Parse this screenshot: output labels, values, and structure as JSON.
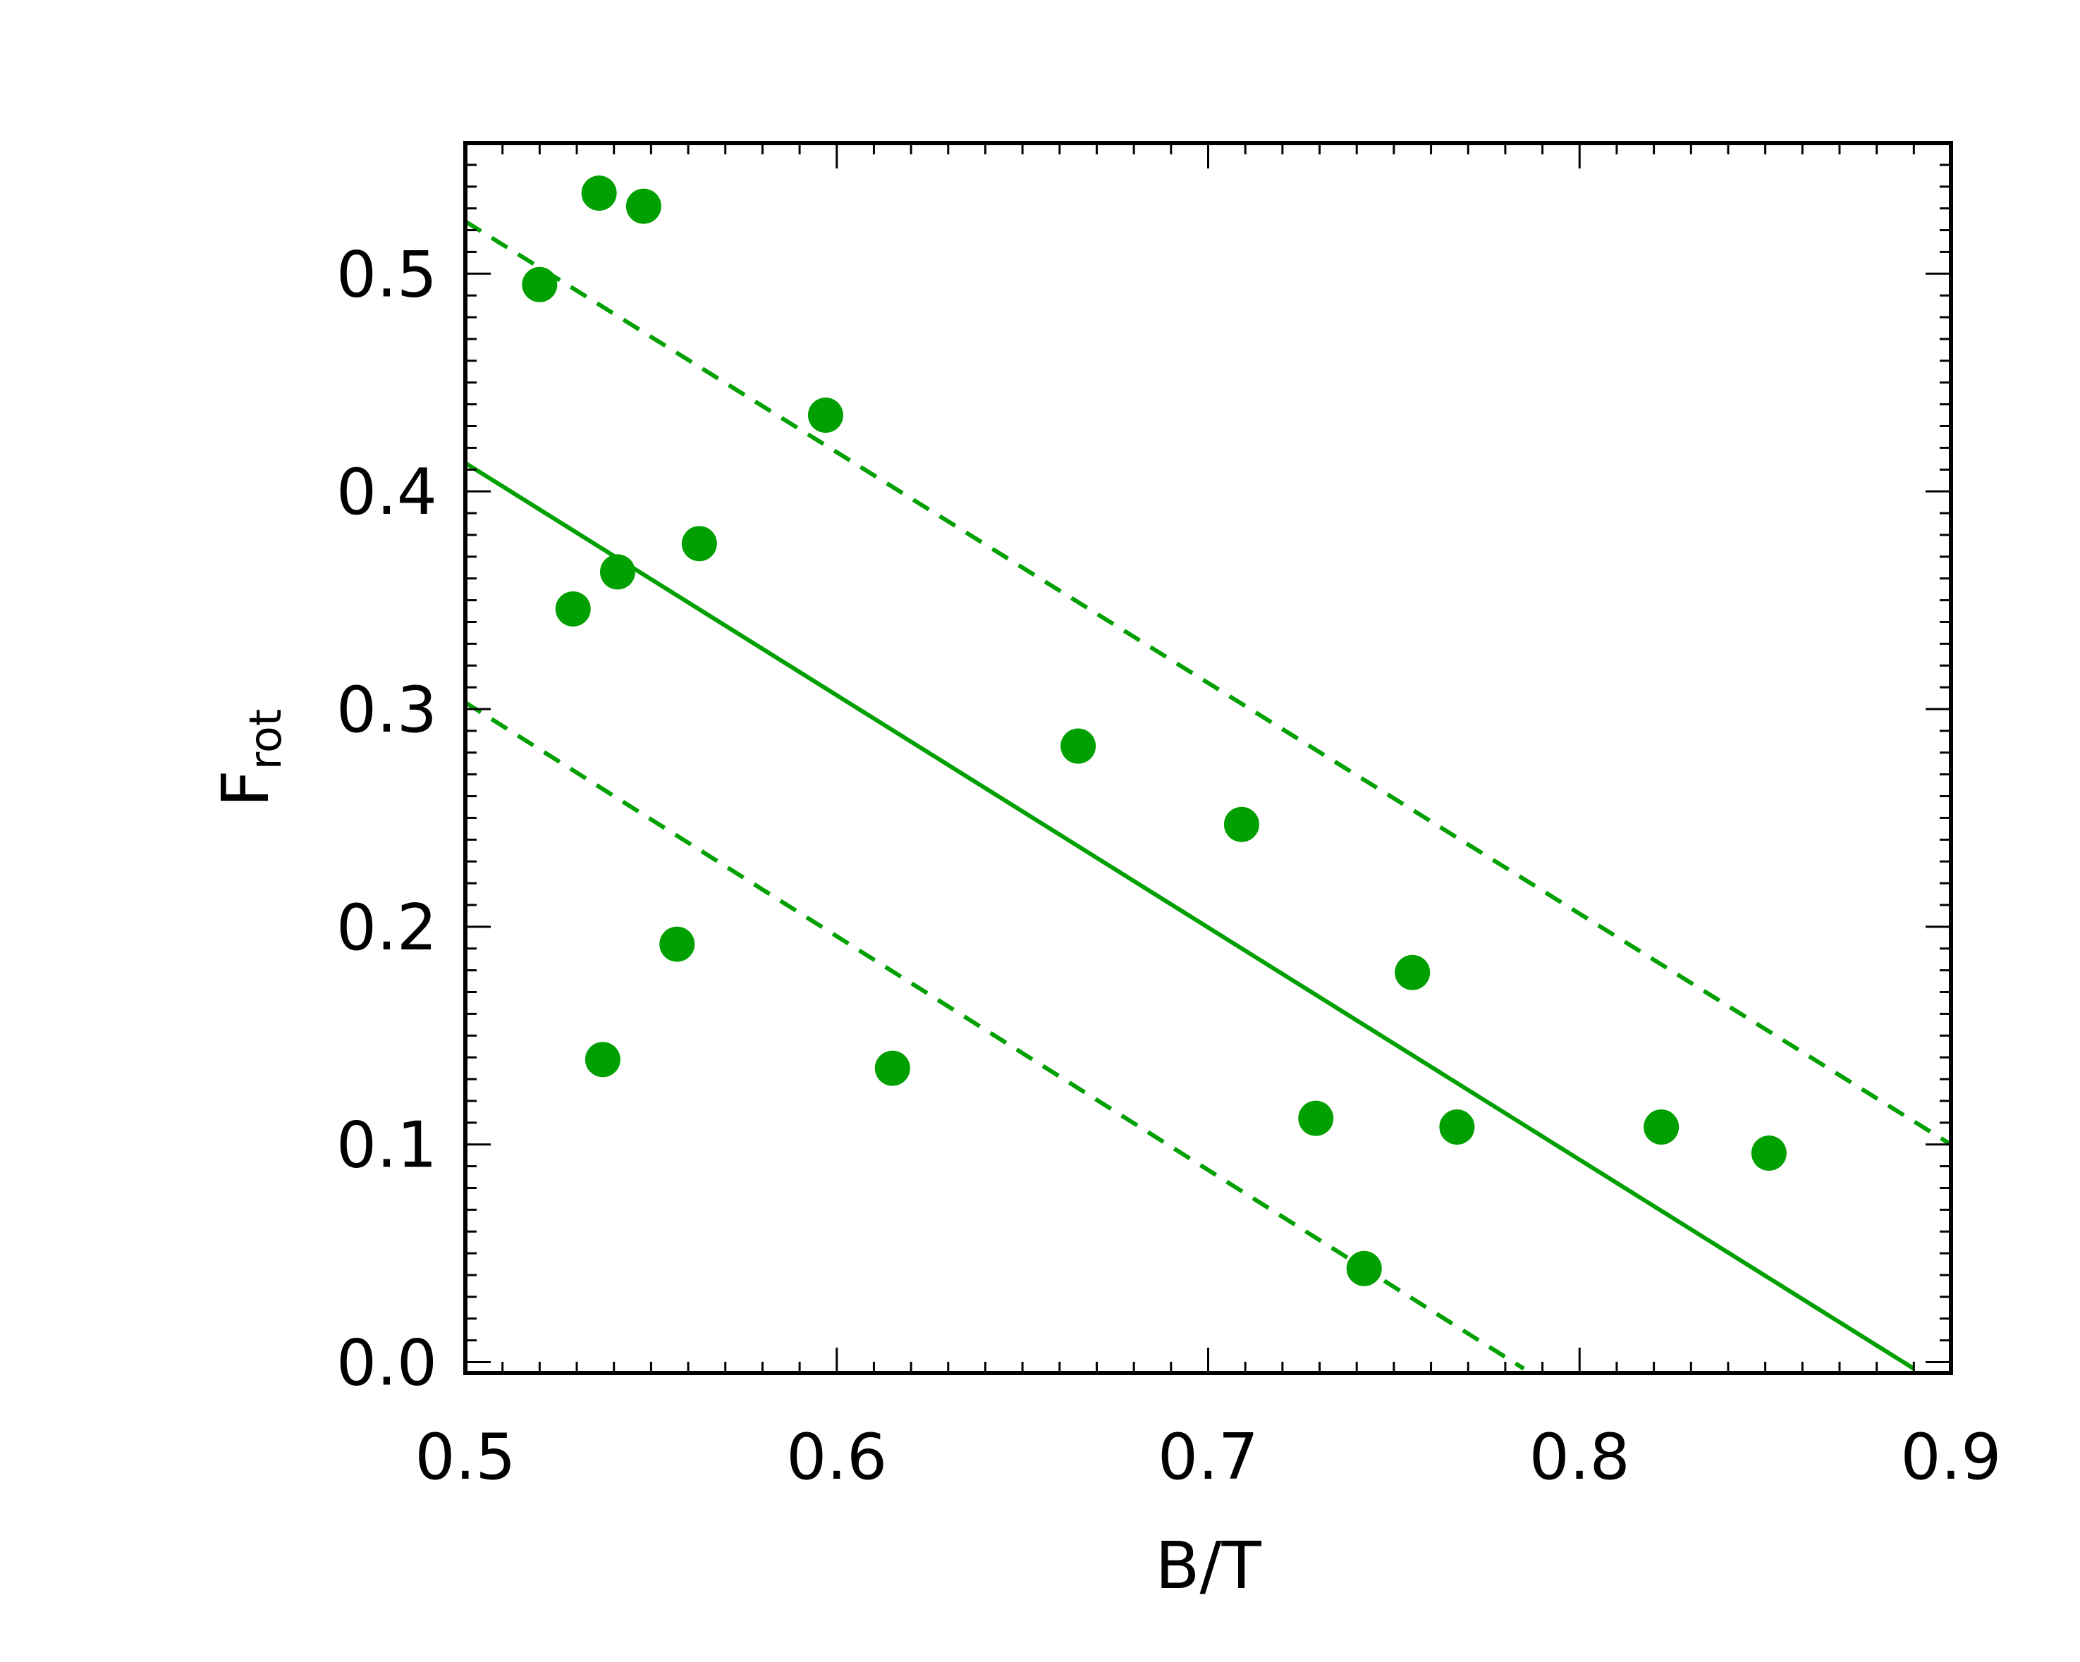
{
  "chart_data": {
    "type": "scatter",
    "title": "",
    "xlabel": "B/T",
    "ylabel": {
      "main": "F",
      "subscript": "rot"
    },
    "xlim": [
      0.5,
      0.9
    ],
    "ylim": [
      -0.005,
      0.56
    ],
    "xticks": [
      "0.5",
      "0.6",
      "0.7",
      "0.8",
      "0.9"
    ],
    "yticks": [
      "0.0",
      "0.1",
      "0.2",
      "0.3",
      "0.4",
      "0.5"
    ],
    "grid": false,
    "color": "#00a000",
    "points": [
      {
        "x": 0.52,
        "y": 0.495
      },
      {
        "x": 0.536,
        "y": 0.537
      },
      {
        "x": 0.548,
        "y": 0.531
      },
      {
        "x": 0.529,
        "y": 0.346
      },
      {
        "x": 0.541,
        "y": 0.363
      },
      {
        "x": 0.563,
        "y": 0.376
      },
      {
        "x": 0.597,
        "y": 0.435
      },
      {
        "x": 0.557,
        "y": 0.192
      },
      {
        "x": 0.537,
        "y": 0.139
      },
      {
        "x": 0.615,
        "y": 0.135
      },
      {
        "x": 0.665,
        "y": 0.283
      },
      {
        "x": 0.709,
        "y": 0.247
      },
      {
        "x": 0.729,
        "y": 0.112
      },
      {
        "x": 0.742,
        "y": 0.043
      },
      {
        "x": 0.755,
        "y": 0.179
      },
      {
        "x": 0.767,
        "y": 0.108
      },
      {
        "x": 0.822,
        "y": 0.108
      },
      {
        "x": 0.851,
        "y": 0.096
      }
    ],
    "lines": [
      {
        "style": "solid",
        "x": [
          0.5,
          0.89
        ],
        "y": [
          0.413,
          -0.003
        ]
      },
      {
        "style": "dashed",
        "x": [
          0.5,
          0.9
        ],
        "y": [
          0.524,
          0.1
        ]
      },
      {
        "style": "dashed",
        "x": [
          0.5,
          0.785
        ],
        "y": [
          0.303,
          -0.003
        ]
      }
    ]
  }
}
